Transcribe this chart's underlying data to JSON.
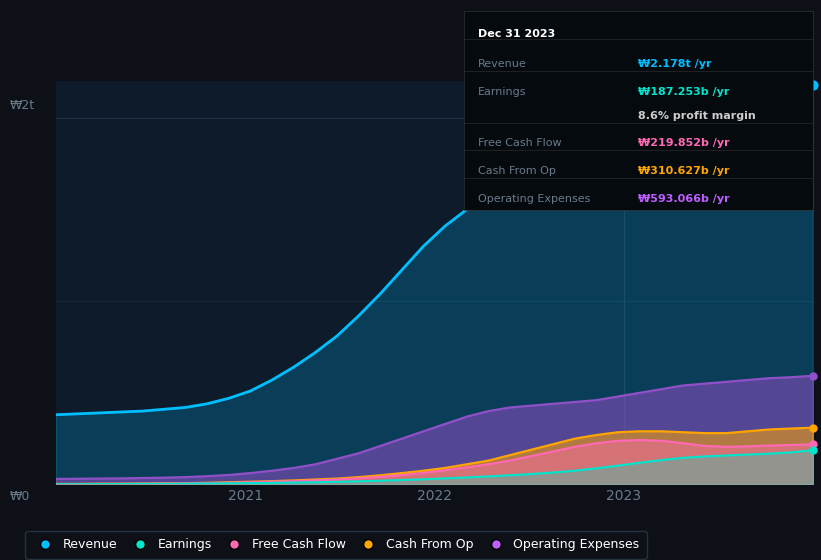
{
  "bg_color": "#0d1117",
  "chart_bg": "#0d1b2a",
  "ylabel_top": "₩2t",
  "ylabel_bottom": "₩0",
  "tooltip": {
    "date": "Dec 31 2023",
    "revenue_label": "Revenue",
    "revenue_val": "₩2.178t /yr",
    "revenue_color": "#00bfff",
    "earnings_label": "Earnings",
    "earnings_val": "₩187.253b /yr",
    "earnings_color": "#00e5cc",
    "profit_margin": "8.6% profit margin",
    "profit_color": "#cccccc",
    "fcf_label": "Free Cash Flow",
    "fcf_val": "₩219.852b /yr",
    "fcf_color": "#ff69b4",
    "cashop_label": "Cash From Op",
    "cashop_val": "₩310.627b /yr",
    "cashop_color": "#ffa500",
    "opex_label": "Operating Expenses",
    "opex_val": "₩593.066b /yr",
    "opex_color": "#bf5fff"
  },
  "legend": [
    {
      "label": "Revenue",
      "color": "#00bfff"
    },
    {
      "label": "Earnings",
      "color": "#00e5cc"
    },
    {
      "label": "Free Cash Flow",
      "color": "#ff69b4"
    },
    {
      "label": "Cash From Op",
      "color": "#ffa500"
    },
    {
      "label": "Operating Expenses",
      "color": "#bf5fff"
    }
  ],
  "revenue": [
    0.38,
    0.385,
    0.39,
    0.395,
    0.4,
    0.41,
    0.42,
    0.44,
    0.47,
    0.51,
    0.57,
    0.64,
    0.72,
    0.81,
    0.92,
    1.04,
    1.17,
    1.3,
    1.41,
    1.5,
    1.57,
    1.63,
    1.68,
    1.72,
    1.77,
    1.82,
    1.88,
    1.93,
    1.98,
    2.03,
    2.07,
    2.11,
    2.14,
    2.16,
    2.17,
    2.178
  ],
  "operating_expenses": [
    0.03,
    0.031,
    0.032,
    0.033,
    0.035,
    0.037,
    0.04,
    0.045,
    0.052,
    0.062,
    0.075,
    0.09,
    0.11,
    0.14,
    0.17,
    0.21,
    0.25,
    0.29,
    0.33,
    0.37,
    0.4,
    0.42,
    0.43,
    0.44,
    0.45,
    0.46,
    0.48,
    0.5,
    0.52,
    0.54,
    0.55,
    0.56,
    0.57,
    0.58,
    0.585,
    0.593
  ],
  "cash_from_op": [
    0.003,
    0.003,
    0.004,
    0.004,
    0.005,
    0.006,
    0.007,
    0.009,
    0.012,
    0.015,
    0.018,
    0.022,
    0.027,
    0.032,
    0.04,
    0.05,
    0.062,
    0.075,
    0.09,
    0.11,
    0.13,
    0.16,
    0.19,
    0.22,
    0.25,
    0.27,
    0.285,
    0.29,
    0.29,
    0.285,
    0.28,
    0.28,
    0.29,
    0.3,
    0.305,
    0.31
  ],
  "free_cash_flow": [
    0.002,
    0.002,
    0.003,
    0.003,
    0.004,
    0.005,
    0.006,
    0.007,
    0.009,
    0.012,
    0.015,
    0.018,
    0.022,
    0.027,
    0.033,
    0.041,
    0.051,
    0.063,
    0.077,
    0.093,
    0.11,
    0.13,
    0.155,
    0.18,
    0.205,
    0.225,
    0.238,
    0.242,
    0.238,
    0.225,
    0.21,
    0.205,
    0.208,
    0.212,
    0.215,
    0.219
  ],
  "earnings": [
    0.001,
    0.001,
    0.002,
    0.002,
    0.003,
    0.003,
    0.004,
    0.005,
    0.006,
    0.007,
    0.008,
    0.01,
    0.012,
    0.014,
    0.017,
    0.02,
    0.024,
    0.028,
    0.033,
    0.038,
    0.044,
    0.05,
    0.057,
    0.065,
    0.075,
    0.088,
    0.103,
    0.118,
    0.133,
    0.145,
    0.153,
    0.158,
    0.163,
    0.168,
    0.175,
    0.187
  ],
  "revenue_color": "#00bfff",
  "earnings_color": "#00e5cc",
  "fcf_color": "#ff69b4",
  "cashop_color": "#ffa500",
  "opex_color": "#9050c8"
}
